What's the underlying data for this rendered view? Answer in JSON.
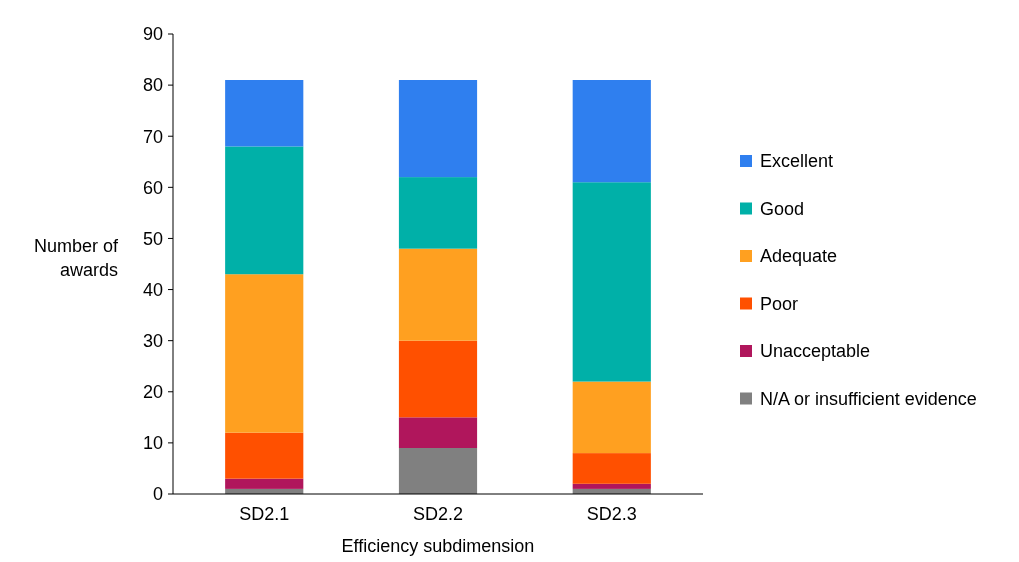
{
  "chart_data": {
    "type": "bar",
    "stacked": true,
    "xlabel": "Efficiency subdimension",
    "ylabel": "Number of awards",
    "categories": [
      "SD2.1",
      "SD2.2",
      "SD2.3"
    ],
    "ylim": [
      0,
      90
    ],
    "yticks": [
      0,
      10,
      20,
      30,
      40,
      50,
      60,
      70,
      80,
      90
    ],
    "legend": "right",
    "grid": false,
    "series": [
      {
        "name": "N/A or insufficient evidence",
        "color": "#808080",
        "values": [
          1,
          9,
          1
        ]
      },
      {
        "name": "Unacceptable",
        "color": "#b0165c",
        "values": [
          2,
          6,
          1
        ]
      },
      {
        "name": "Poor",
        "color": "#ff5000",
        "values": [
          9,
          15,
          6
        ]
      },
      {
        "name": "Adequate",
        "color": "#ffa020",
        "values": [
          31,
          18,
          14
        ]
      },
      {
        "name": "Good",
        "color": "#00b0a8",
        "values": [
          25,
          14,
          39
        ]
      },
      {
        "name": "Excellent",
        "color": "#2f7fef",
        "values": [
          13,
          19,
          20
        ]
      }
    ]
  }
}
